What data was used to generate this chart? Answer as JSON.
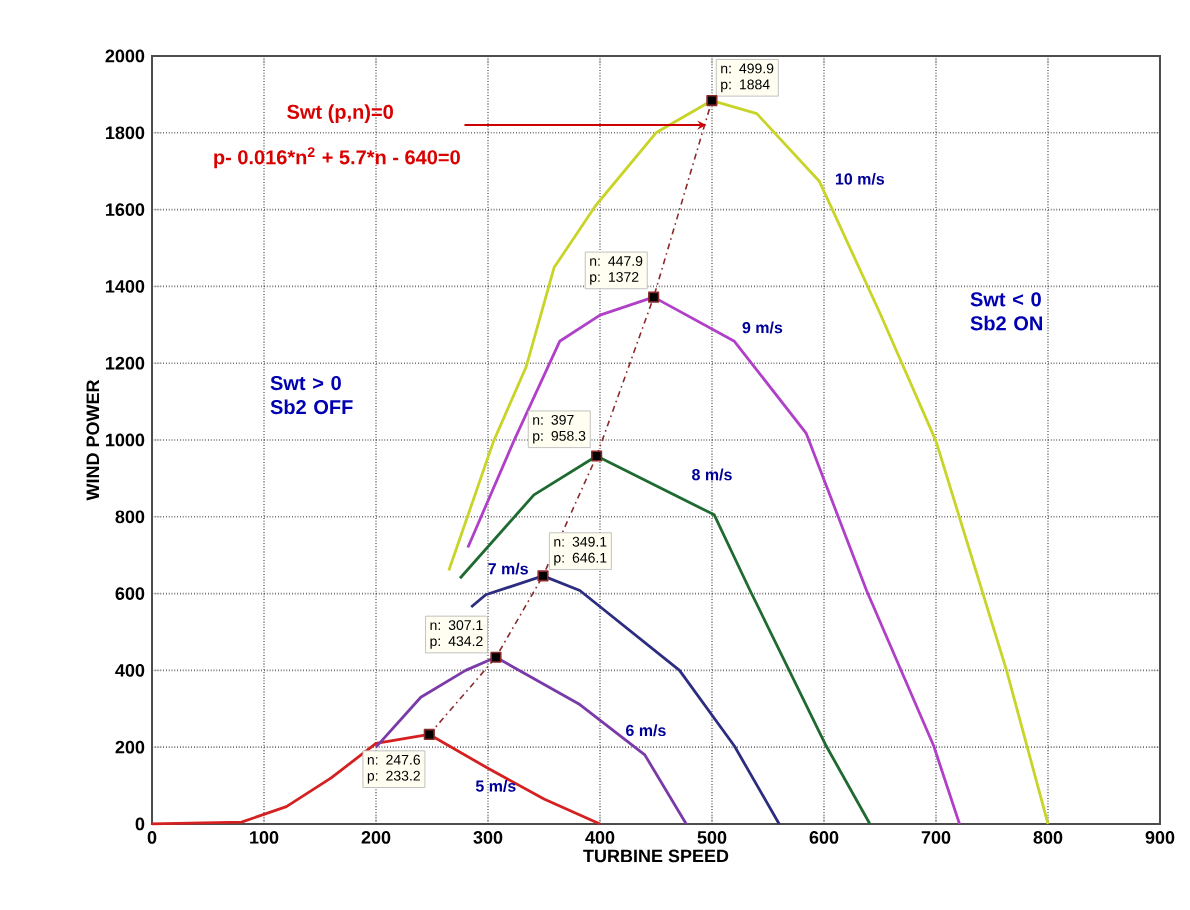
{
  "chart_data": {
    "type": "line",
    "xlabel": "TURBINE SPEED",
    "ylabel": "WIND POWER",
    "xlim": [
      0,
      900
    ],
    "xticks": [
      0,
      100,
      200,
      300,
      400,
      500,
      600,
      700,
      800,
      900
    ],
    "ylim": [
      0,
      2000
    ],
    "yticks": [
      0,
      200,
      400,
      600,
      800,
      1000,
      1200,
      1400,
      1600,
      1800,
      2000
    ],
    "grid": true,
    "series": [
      {
        "name": "5 m/s",
        "color": "#d42020",
        "x": [
          0,
          80,
          120,
          160,
          200,
          247.6,
          300,
          350,
          400
        ],
        "values": [
          0,
          5,
          45,
          120,
          210,
          233.2,
          145,
          65,
          0
        ]
      },
      {
        "name": "6 m/s",
        "color": "#7a3aa8",
        "x": [
          200,
          240,
          280,
          307.1,
          382,
          440,
          477
        ],
        "values": [
          200,
          330,
          400,
          434.2,
          311,
          180,
          0
        ]
      },
      {
        "name": "7 m/s",
        "color": "#2c2c80",
        "x": [
          285,
          298,
          349.1,
          382,
          471,
          520,
          560
        ],
        "values": [
          565,
          597,
          646.1,
          608,
          400,
          203,
          0
        ]
      },
      {
        "name": "8 m/s",
        "color": "#1f6a30",
        "x": [
          275,
          341,
          397,
          502,
          534,
          602,
          641
        ],
        "values": [
          640,
          857,
          958.3,
          805,
          608,
          203,
          0
        ]
      },
      {
        "name": "9 m/s",
        "color": "#b040c8",
        "x": [
          282,
          323,
          364,
          400,
          447.9,
          520,
          584,
          638,
          698,
          721
        ],
        "values": [
          720,
          997,
          1257,
          1325,
          1372,
          1257,
          1018,
          608,
          203,
          0
        ]
      },
      {
        "name": "10 m/s",
        "color": "#c8d428",
        "x": [
          265,
          305,
          334,
          359,
          396,
          450,
          499.9,
          540,
          596,
          650,
          700,
          763,
          800
        ],
        "values": [
          660,
          997,
          1190,
          1449,
          1610,
          1800,
          1884,
          1850,
          1673,
          1330,
          997,
          400,
          0
        ]
      },
      {
        "color": "#8b2a2a",
        "line_style": "dashed",
        "marker": "square",
        "x": [
          247.6,
          307.1,
          349.1,
          397,
          447.9,
          499.9
        ],
        "values": [
          233.2,
          434.2,
          646.1,
          958.3,
          1372,
          1884
        ],
        "value_labels": [
          "n: 247.6 p: 233.2",
          "n: 307.1 p: 434.2",
          "n: 349.1 p: 646.1",
          "n: 397 p: 958.3",
          "n: 447.9 p: 1372",
          "n: 499.9 p: 1884"
        ]
      }
    ],
    "annotations": [
      "Swt (p,n)=0",
      {
        "text": "p- 0.016*n$^{2}$ + 5.7*n - 640=0",
        "x": 495,
        "y": 1820
      },
      "Swt > 0 Sb2 OFF",
      "Swt < 0 Sb2 ON"
    ]
  }
}
